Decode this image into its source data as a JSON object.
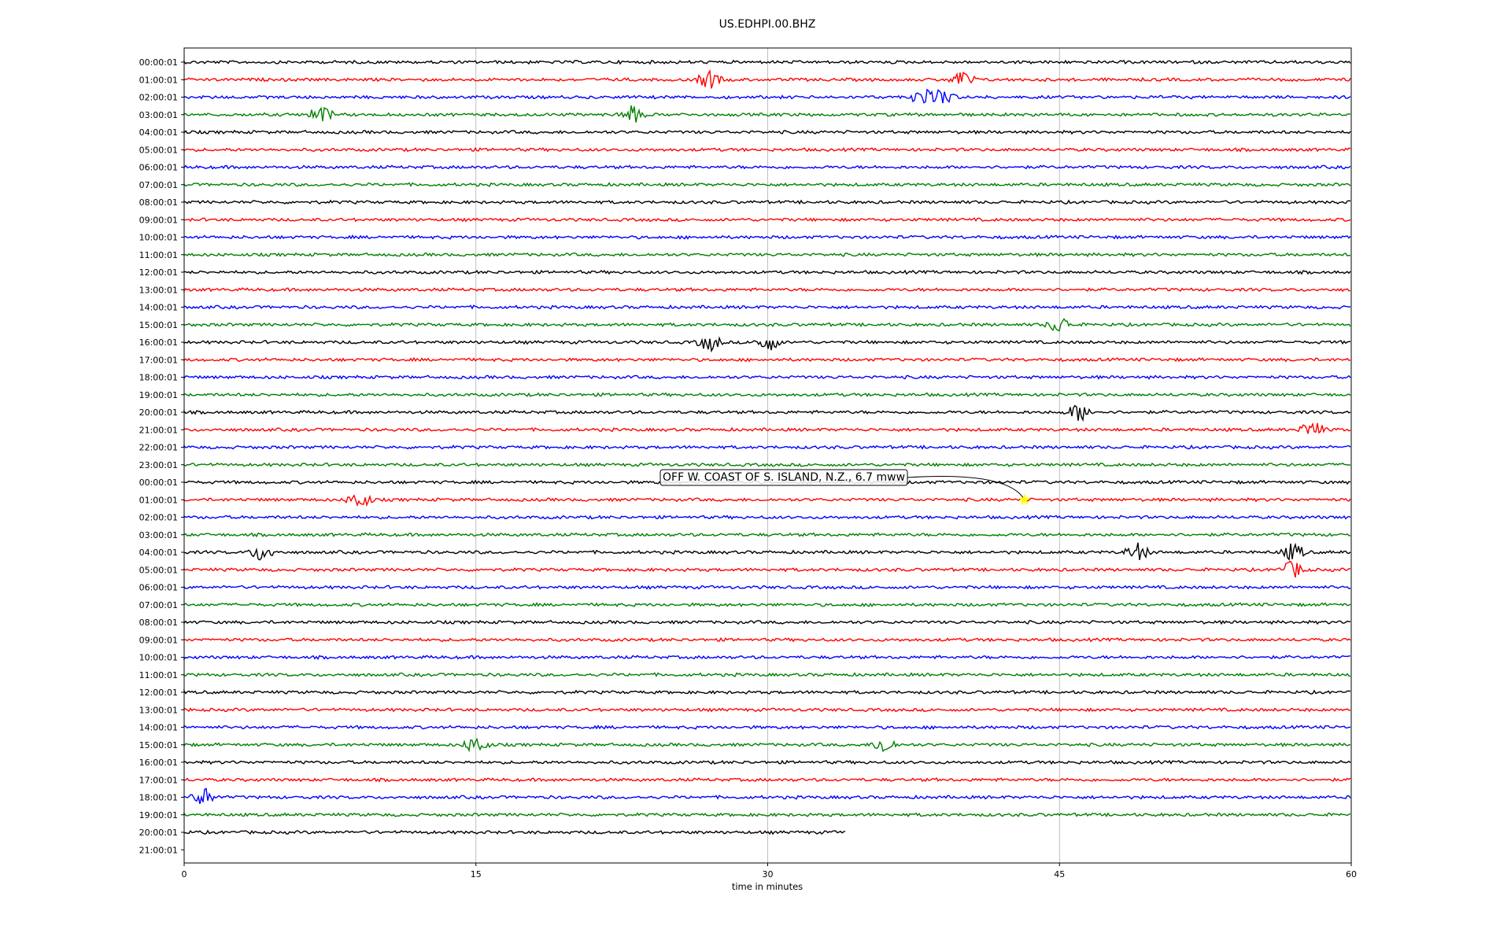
{
  "chart_data": {
    "type": "line",
    "title": "US.EDHPI.00.BHZ",
    "xlabel": "time in minutes",
    "ylabel": "",
    "xlim": [
      0,
      60
    ],
    "x_ticks": [
      "0",
      "15",
      "30",
      "45",
      "60"
    ],
    "grid": "vertical lines at 15, 30, 45",
    "row_labels": [
      "00:00:01",
      "01:00:01",
      "02:00:01",
      "03:00:01",
      "04:00:01",
      "05:00:01",
      "06:00:01",
      "07:00:01",
      "08:00:01",
      "09:00:01",
      "10:00:01",
      "11:00:01",
      "12:00:01",
      "13:00:01",
      "14:00:01",
      "15:00:01",
      "16:00:01",
      "17:00:01",
      "18:00:01",
      "19:00:01",
      "20:00:01",
      "21:00:01",
      "22:00:01",
      "23:00:01",
      "00:00:01",
      "01:00:01",
      "02:00:01",
      "03:00:01",
      "04:00:01",
      "05:00:01",
      "06:00:01",
      "07:00:01",
      "08:00:01",
      "09:00:01",
      "10:00:01",
      "11:00:01",
      "12:00:01",
      "13:00:01",
      "14:00:01",
      "15:00:01",
      "16:00:01",
      "17:00:01",
      "18:00:01",
      "19:00:01",
      "20:00:01",
      "21:00:01"
    ],
    "trace_colors": [
      "#000000",
      "#ff0000",
      "#0000ff",
      "#008000"
    ],
    "last_trace_end_minutes": 34,
    "notable_bursts": [
      {
        "row": 1,
        "minutes": [
          27,
          40
        ]
      },
      {
        "row": 2,
        "minutes": [
          38,
          39
        ]
      },
      {
        "row": 3,
        "minutes": [
          7,
          23
        ]
      },
      {
        "row": 15,
        "minutes": [
          45
        ]
      },
      {
        "row": 16,
        "minutes": [
          27,
          30
        ]
      },
      {
        "row": 20,
        "minutes": [
          46
        ]
      },
      {
        "row": 21,
        "minutes": [
          58
        ]
      },
      {
        "row": 25,
        "minutes": [
          9
        ]
      },
      {
        "row": 28,
        "minutes": [
          4,
          49,
          57
        ]
      },
      {
        "row": 29,
        "minutes": [
          57
        ]
      },
      {
        "row": 39,
        "minutes": [
          15,
          36
        ]
      },
      {
        "row": 42,
        "minutes": [
          1
        ]
      }
    ],
    "event": {
      "label": "OFF W. COAST OF S. ISLAND, N.Z., 6.7 mww",
      "row": 25,
      "minute": 43.2,
      "marker_color": "#ffff00"
    }
  }
}
